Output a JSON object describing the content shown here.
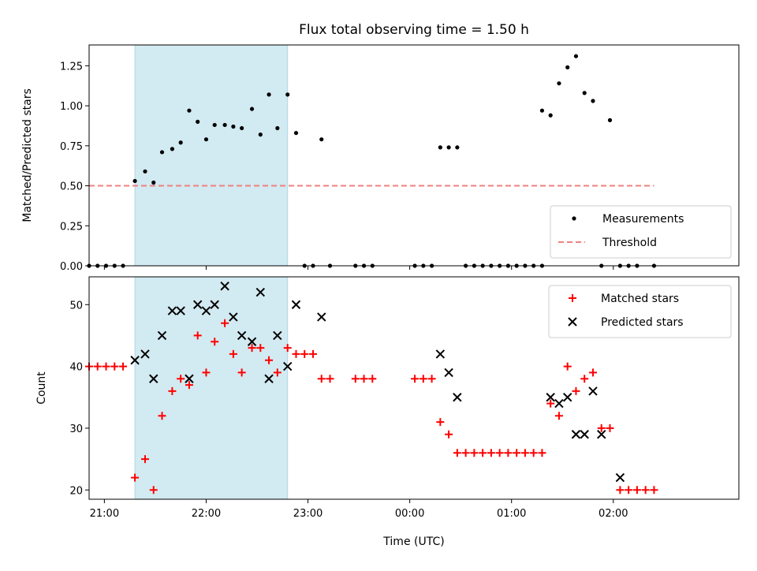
{
  "chart_data": [
    {
      "type": "scatter",
      "title": "Flux total observing time = 1.50 h",
      "ylabel": "Matched/Predicted stars",
      "xlabel": "",
      "xlim": [
        "20:51",
        "03:14"
      ],
      "ylim": [
        0,
        1.38
      ],
      "yticks": [
        0.0,
        0.25,
        0.5,
        0.75,
        1.0,
        1.25
      ],
      "ytick_labels": [
        "0.00",
        "0.25",
        "0.50",
        "0.75",
        "1.00",
        "1.25"
      ],
      "shaded_interval": [
        "21:18",
        "22:48"
      ],
      "shade_color": "#add8e6",
      "threshold": {
        "name": "Threshold",
        "y": 0.5,
        "x_range": [
          "20:51",
          "02:24"
        ],
        "color": "#f08080"
      },
      "legend": {
        "position": "lower right",
        "entries": [
          "Measurements",
          "Threshold"
        ]
      },
      "series": [
        {
          "name": "Measurements",
          "marker": "dot",
          "color": "#000000",
          "points": [
            [
              "20:51",
              0
            ],
            [
              "20:56",
              0
            ],
            [
              "21:01",
              0
            ],
            [
              "21:06",
              0
            ],
            [
              "21:11",
              0
            ],
            [
              "21:18",
              0.53
            ],
            [
              "21:24",
              0.59
            ],
            [
              "21:29",
              0.52
            ],
            [
              "21:34",
              0.71
            ],
            [
              "21:40",
              0.73
            ],
            [
              "21:45",
              0.77
            ],
            [
              "21:50",
              0.97
            ],
            [
              "21:55",
              0.9
            ],
            [
              "22:00",
              0.79
            ],
            [
              "22:05",
              0.88
            ],
            [
              "22:11",
              0.88
            ],
            [
              "22:16",
              0.87
            ],
            [
              "22:21",
              0.86
            ],
            [
              "22:27",
              0.98
            ],
            [
              "22:32",
              0.82
            ],
            [
              "22:37",
              1.07
            ],
            [
              "22:42",
              0.86
            ],
            [
              "22:48",
              1.07
            ],
            [
              "22:53",
              0.83
            ],
            [
              "22:58",
              0
            ],
            [
              "23:03",
              0
            ],
            [
              "23:08",
              0.79
            ],
            [
              "23:13",
              0
            ],
            [
              "23:28",
              0
            ],
            [
              "23:33",
              0
            ],
            [
              "23:38",
              0
            ],
            [
              "00:03",
              0
            ],
            [
              "00:08",
              0
            ],
            [
              "00:13",
              0
            ],
            [
              "00:18",
              0.74
            ],
            [
              "00:23",
              0.74
            ],
            [
              "00:28",
              0.74
            ],
            [
              "00:33",
              0
            ],
            [
              "00:38",
              0
            ],
            [
              "00:43",
              0
            ],
            [
              "00:48",
              0
            ],
            [
              "00:53",
              0
            ],
            [
              "00:58",
              0
            ],
            [
              "01:03",
              0
            ],
            [
              "01:08",
              0
            ],
            [
              "01:13",
              0
            ],
            [
              "01:18",
              0
            ],
            [
              "01:18",
              0.97
            ],
            [
              "01:23",
              0.94
            ],
            [
              "01:28",
              1.14
            ],
            [
              "01:33",
              1.24
            ],
            [
              "01:38",
              1.31
            ],
            [
              "01:43",
              1.08
            ],
            [
              "01:48",
              1.03
            ],
            [
              "01:53",
              0
            ],
            [
              "01:58",
              0.91
            ],
            [
              "02:04",
              0
            ],
            [
              "02:09",
              0
            ],
            [
              "02:14",
              0
            ],
            [
              "02:24",
              0
            ]
          ]
        }
      ]
    },
    {
      "type": "scatter",
      "title": "",
      "xlabel": "Time (UTC)",
      "ylabel": "Count",
      "xlim": [
        "20:51",
        "03:14"
      ],
      "ylim": [
        18.5,
        54.5
      ],
      "yticks": [
        20,
        30,
        40,
        50
      ],
      "xticks": [
        "21:00",
        "22:00",
        "23:00",
        "00:00",
        "01:00",
        "02:00"
      ],
      "shaded_interval": [
        "21:18",
        "22:48"
      ],
      "shade_color": "#add8e6",
      "legend": {
        "position": "upper right",
        "entries": [
          "Matched stars",
          "Predicted stars"
        ]
      },
      "series": [
        {
          "name": "Matched stars",
          "marker": "plus",
          "color": "#ff0000",
          "points": [
            [
              "20:51",
              40
            ],
            [
              "20:56",
              40
            ],
            [
              "21:01",
              40
            ],
            [
              "21:06",
              40
            ],
            [
              "21:11",
              40
            ],
            [
              "21:18",
              22
            ],
            [
              "21:24",
              25
            ],
            [
              "21:29",
              20
            ],
            [
              "21:34",
              32
            ],
            [
              "21:40",
              36
            ],
            [
              "21:45",
              38
            ],
            [
              "21:50",
              37
            ],
            [
              "21:55",
              45
            ],
            [
              "22:00",
              39
            ],
            [
              "22:05",
              44
            ],
            [
              "22:11",
              47
            ],
            [
              "22:16",
              42
            ],
            [
              "22:21",
              39
            ],
            [
              "22:27",
              43
            ],
            [
              "22:32",
              43
            ],
            [
              "22:37",
              41
            ],
            [
              "22:42",
              39
            ],
            [
              "22:48",
              43
            ],
            [
              "22:53",
              42
            ],
            [
              "22:58",
              42
            ],
            [
              "23:03",
              42
            ],
            [
              "23:08",
              38
            ],
            [
              "23:13",
              38
            ],
            [
              "23:28",
              38
            ],
            [
              "23:33",
              38
            ],
            [
              "23:38",
              38
            ],
            [
              "00:03",
              38
            ],
            [
              "00:08",
              38
            ],
            [
              "00:13",
              38
            ],
            [
              "00:18",
              31
            ],
            [
              "00:23",
              29
            ],
            [
              "00:28",
              26
            ],
            [
              "00:33",
              26
            ],
            [
              "00:38",
              26
            ],
            [
              "00:43",
              26
            ],
            [
              "00:48",
              26
            ],
            [
              "00:53",
              26
            ],
            [
              "00:58",
              26
            ],
            [
              "01:03",
              26
            ],
            [
              "01:08",
              26
            ],
            [
              "01:13",
              26
            ],
            [
              "01:18",
              26
            ],
            [
              "01:23",
              34
            ],
            [
              "01:28",
              32
            ],
            [
              "01:33",
              40
            ],
            [
              "01:38",
              36
            ],
            [
              "01:43",
              38
            ],
            [
              "01:48",
              39
            ],
            [
              "01:53",
              30
            ],
            [
              "01:58",
              30
            ],
            [
              "02:04",
              20
            ],
            [
              "02:09",
              20
            ],
            [
              "02:14",
              20
            ],
            [
              "02:19",
              20
            ],
            [
              "02:24",
              20
            ]
          ]
        },
        {
          "name": "Predicted stars",
          "marker": "x",
          "color": "#000000",
          "points": [
            [
              "21:18",
              41
            ],
            [
              "21:24",
              42
            ],
            [
              "21:29",
              38
            ],
            [
              "21:34",
              45
            ],
            [
              "21:40",
              49
            ],
            [
              "21:45",
              49
            ],
            [
              "21:50",
              38
            ],
            [
              "21:55",
              50
            ],
            [
              "22:00",
              49
            ],
            [
              "22:05",
              50
            ],
            [
              "22:11",
              53
            ],
            [
              "22:16",
              48
            ],
            [
              "22:21",
              45
            ],
            [
              "22:27",
              44
            ],
            [
              "22:32",
              52
            ],
            [
              "22:37",
              38
            ],
            [
              "22:42",
              45
            ],
            [
              "22:48",
              40
            ],
            [
              "22:53",
              50
            ],
            [
              "23:08",
              48
            ],
            [
              "00:18",
              42
            ],
            [
              "00:23",
              39
            ],
            [
              "00:28",
              35
            ],
            [
              "01:23",
              35
            ],
            [
              "01:28",
              34
            ],
            [
              "01:33",
              35
            ],
            [
              "01:38",
              29
            ],
            [
              "01:43",
              29
            ],
            [
              "01:48",
              36
            ],
            [
              "01:53",
              29
            ],
            [
              "02:04",
              22
            ]
          ]
        }
      ]
    }
  ]
}
